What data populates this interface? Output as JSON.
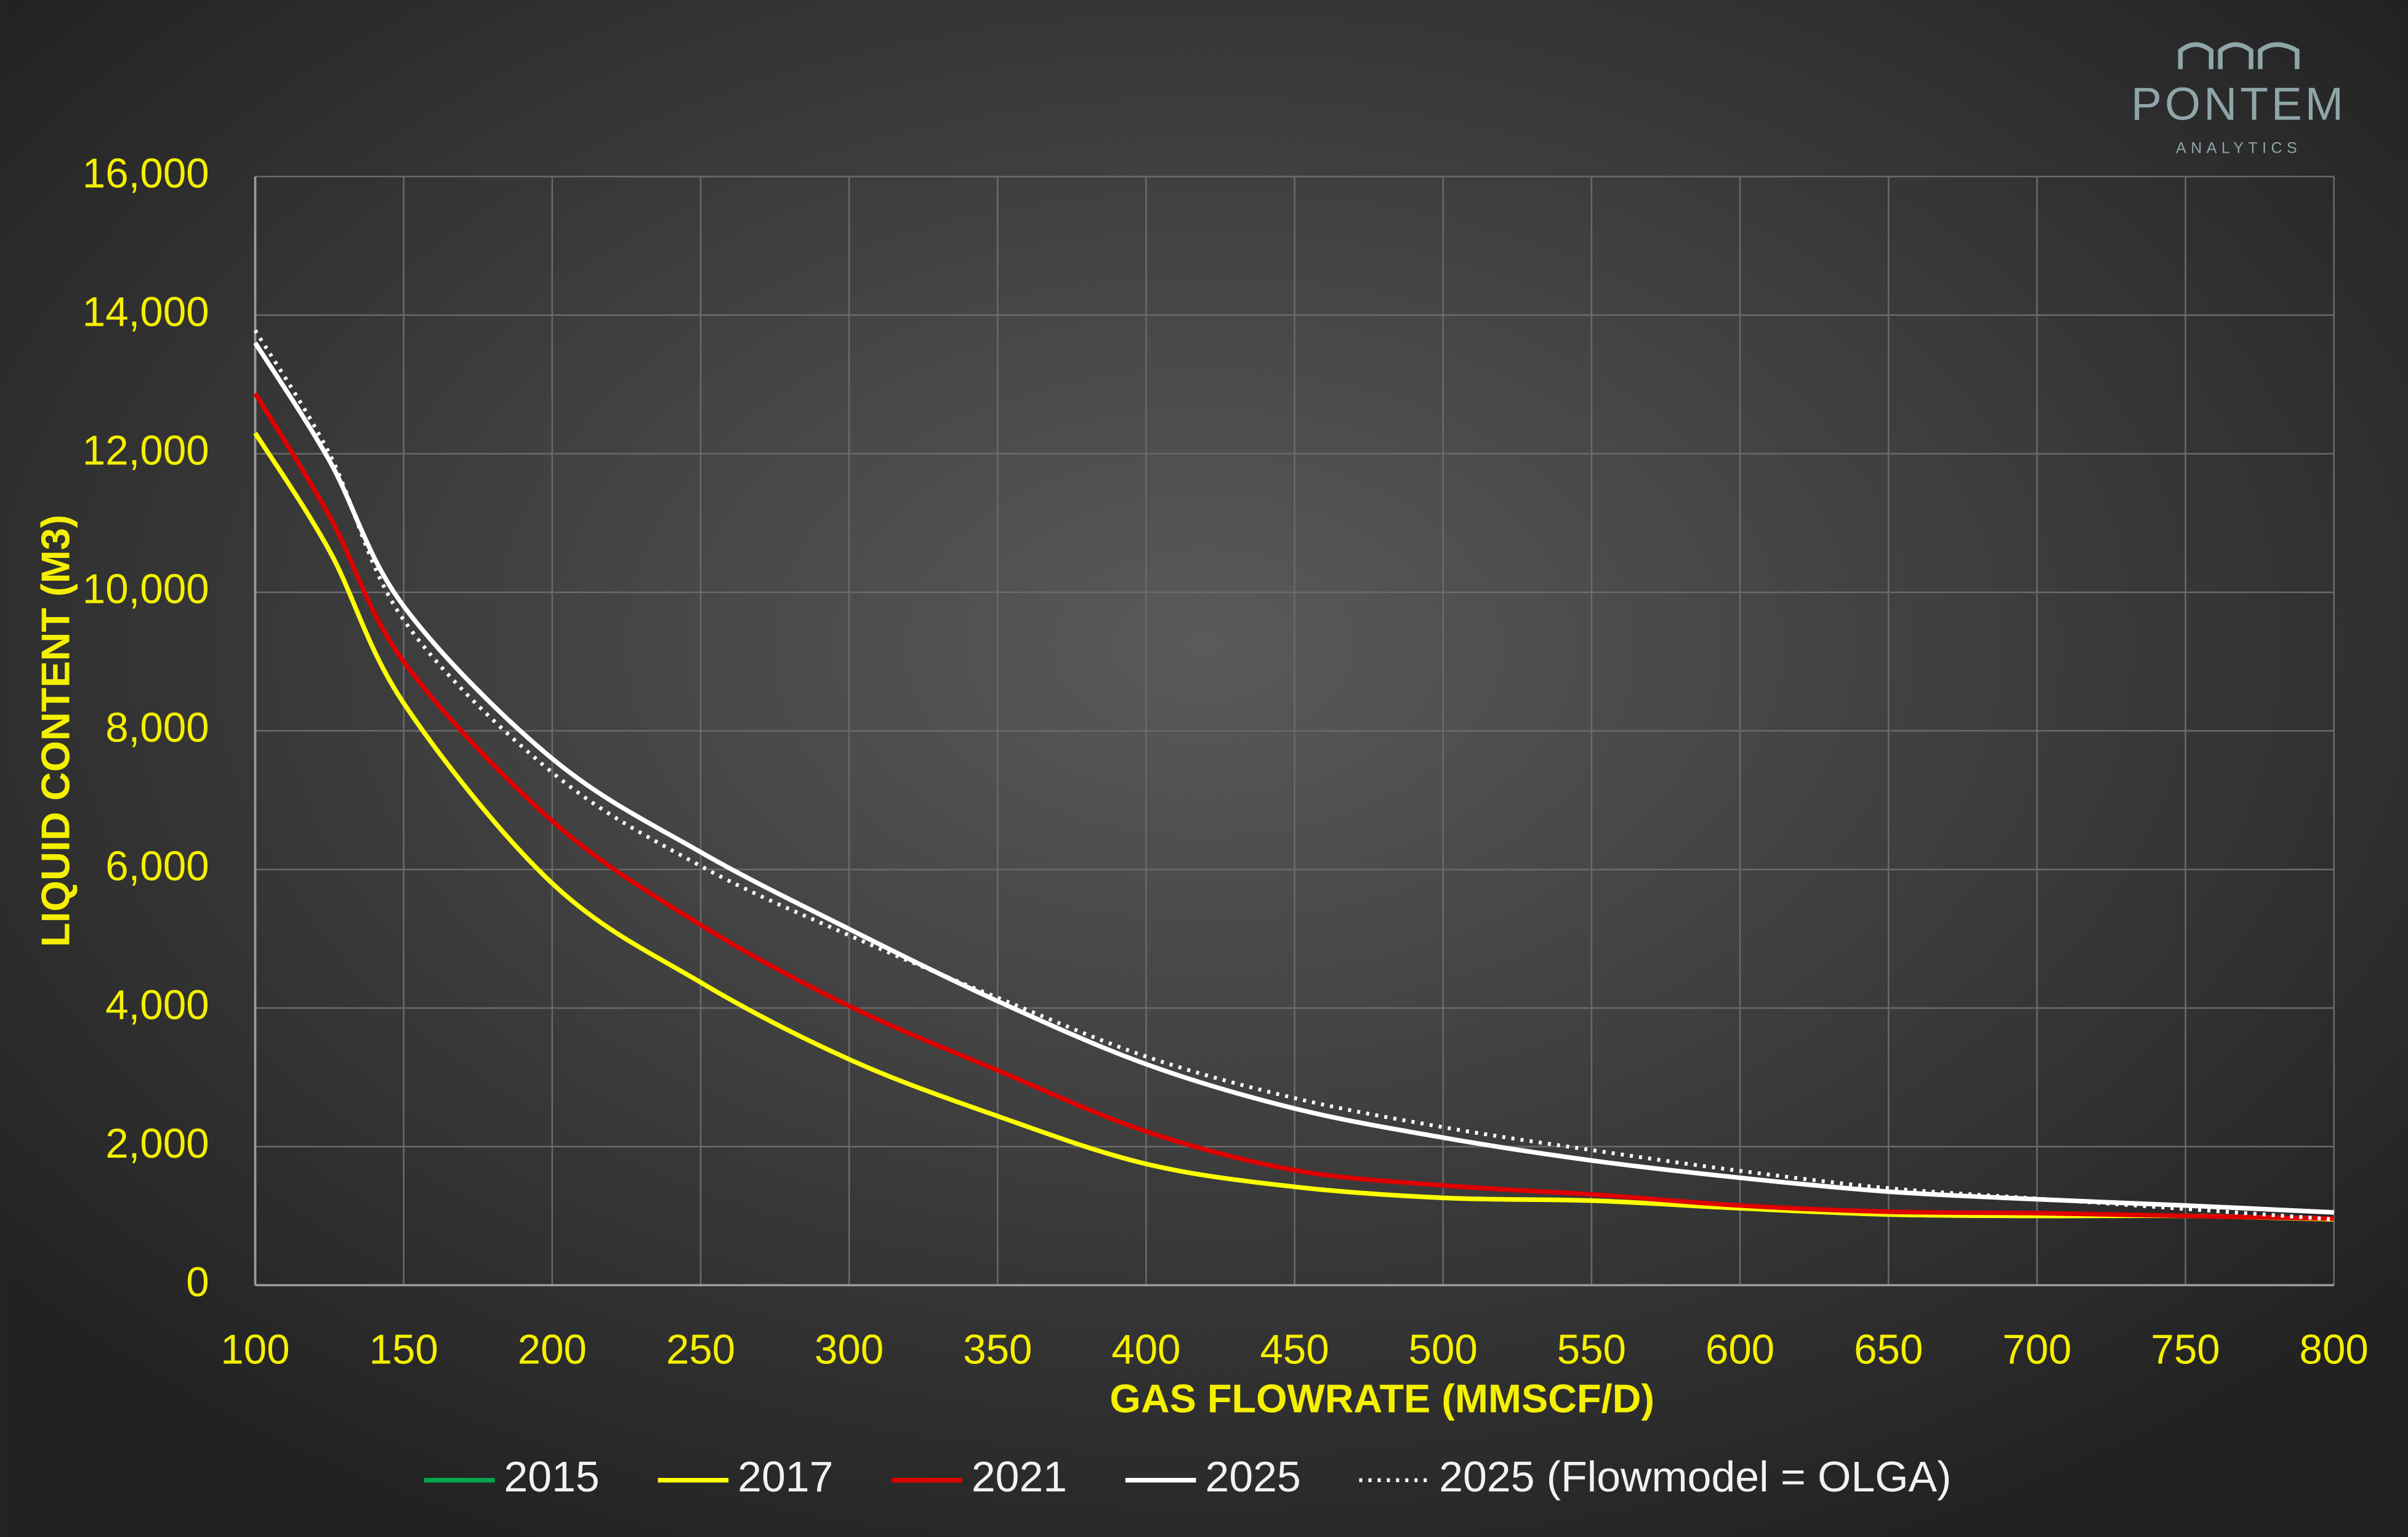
{
  "chart_data": {
    "type": "line",
    "logo": {
      "name": "PONTEM",
      "sub": "ANALYTICS"
    },
    "xlabel": "GAS FLOWRATE (MMSCF/D)",
    "ylabel": "LIQUID CONTENT (M3)",
    "x": [
      100,
      125,
      150,
      200,
      250,
      300,
      350,
      400,
      450,
      500,
      550,
      600,
      650,
      700,
      750,
      800
    ],
    "series": [
      {
        "name": "2015",
        "color": "#00a550",
        "dash": false,
        "values": [
          12300,
          10600,
          8400,
          5800,
          4370,
          3260,
          2440,
          1750,
          1420,
          1260,
          1220,
          1110,
          1020,
          1000,
          1000,
          950
        ]
      },
      {
        "name": "2017",
        "color": "#ffff00",
        "dash": false,
        "values": [
          12300,
          10600,
          8400,
          5800,
          4370,
          3260,
          2440,
          1750,
          1420,
          1260,
          1220,
          1110,
          1020,
          1000,
          1000,
          950
        ]
      },
      {
        "name": "2021",
        "color": "#e00000",
        "dash": false,
        "values": [
          12870,
          11100,
          9000,
          6700,
          5200,
          4030,
          3100,
          2220,
          1660,
          1440,
          1310,
          1150,
          1060,
          1040,
          1000,
          960
        ]
      },
      {
        "name": "2025",
        "color": "#ffffff",
        "dash": false,
        "values": [
          13600,
          11900,
          9800,
          7600,
          6250,
          5140,
          4100,
          3190,
          2550,
          2130,
          1800,
          1550,
          1350,
          1240,
          1150,
          1050
        ]
      },
      {
        "name": "2025 (Flowmodel = OLGA)",
        "color": "#ffffff",
        "dash": true,
        "values": [
          13780,
          12000,
          9600,
          7400,
          6050,
          5050,
          4150,
          3300,
          2700,
          2280,
          1950,
          1650,
          1400,
          1250,
          1100,
          950
        ]
      }
    ],
    "xlim": [
      100,
      800
    ],
    "xticks": [
      100,
      150,
      200,
      250,
      300,
      350,
      400,
      450,
      500,
      550,
      600,
      650,
      700,
      750,
      800
    ],
    "ylim": [
      0,
      16000
    ],
    "yticks": [
      0,
      {
        "value": 2000,
        "label": "2,000"
      },
      {
        "value": 4000,
        "label": "4,000"
      },
      {
        "value": 6000,
        "label": "6,000"
      },
      {
        "value": 8000,
        "label": "8,000"
      },
      {
        "value": 10000,
        "label": "10,000"
      },
      {
        "value": 12000,
        "label": "12,000"
      },
      {
        "value": 14000,
        "label": "14,000"
      },
      {
        "value": 16000,
        "label": "16,000"
      }
    ],
    "grid": true,
    "legend": "bottom"
  }
}
